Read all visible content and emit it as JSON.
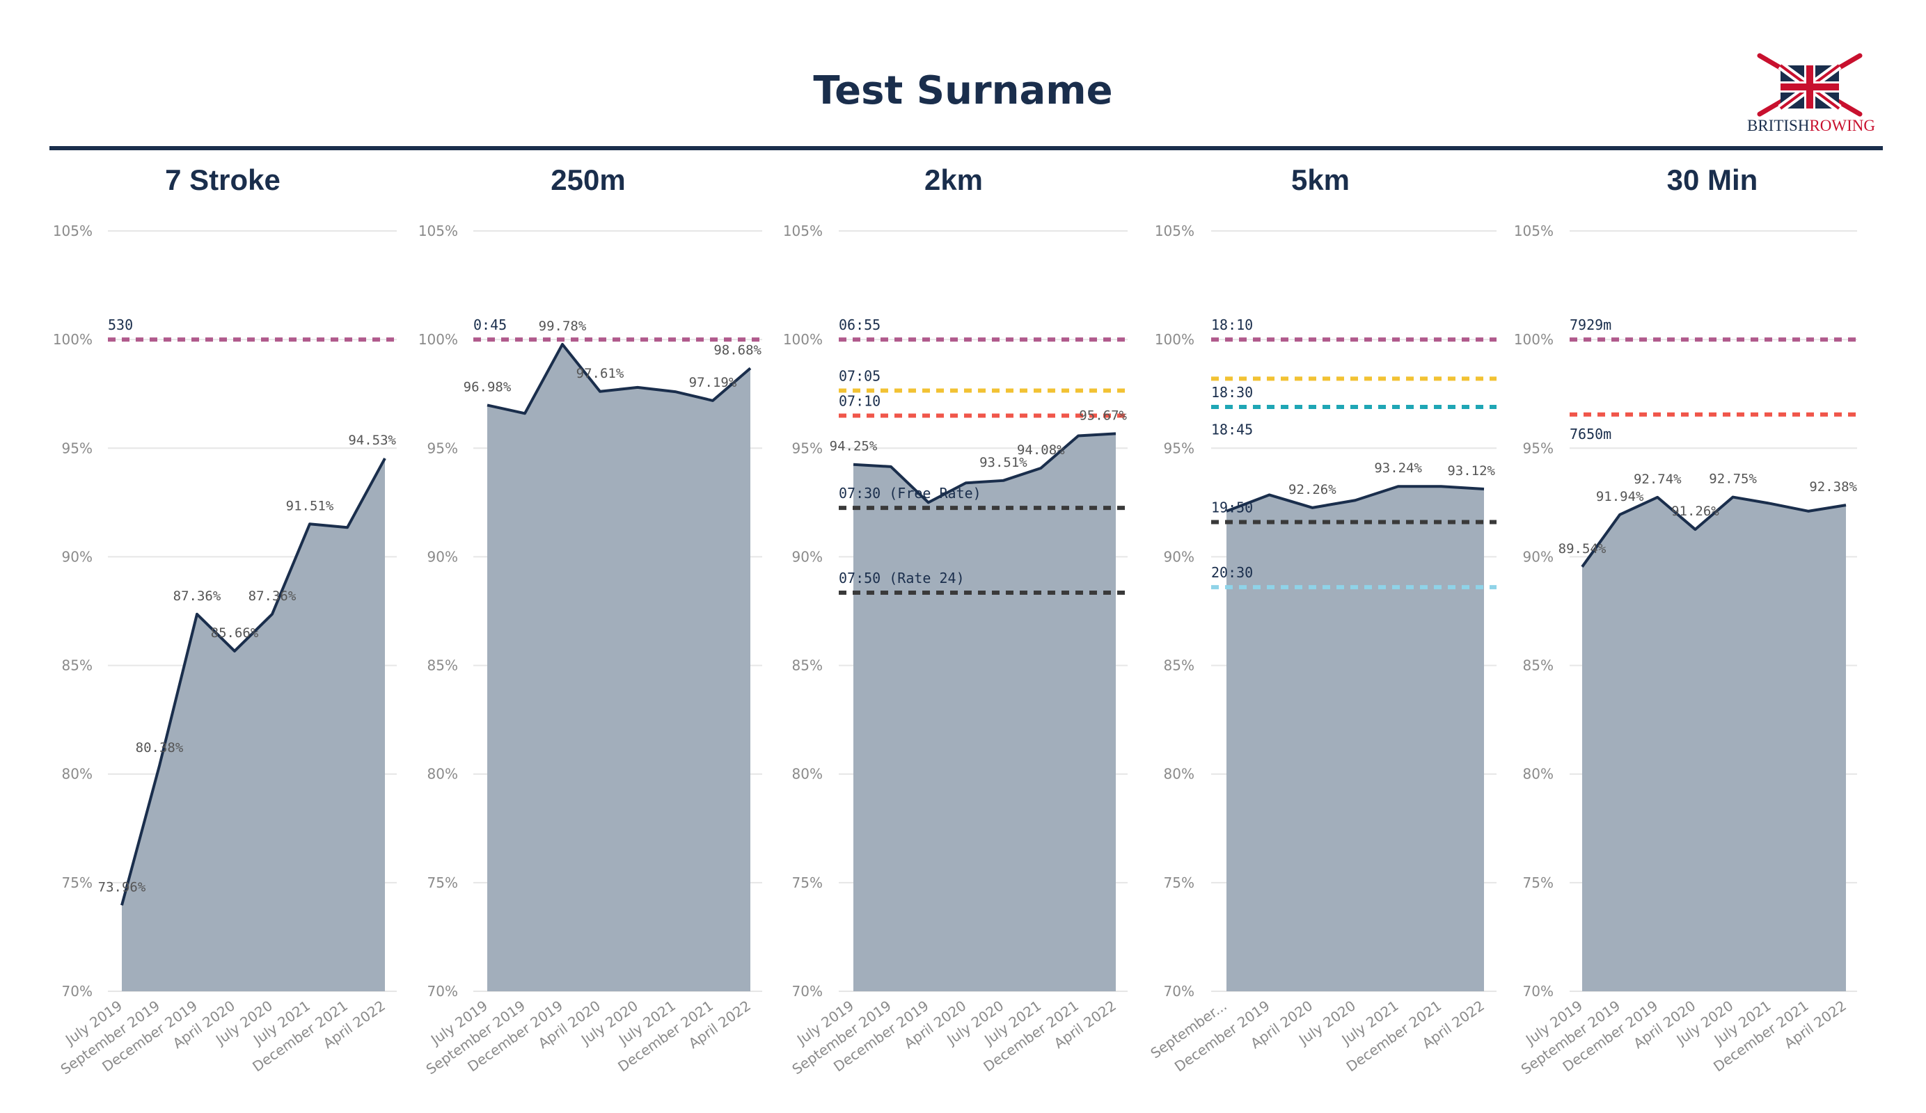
{
  "title": "Test Surname",
  "logo": {
    "word1": "BRITISH",
    "word2": "ROWING"
  },
  "colors": {
    "navy": "#1a2e4c",
    "area": "#a2aebb",
    "grid": "#e6e6e6",
    "ref_purple": "#b05a8c",
    "ref_yellow": "#f2c233",
    "ref_teal": "#1fa6b5",
    "ref_red": "#f0564a",
    "ref_dark": "#3a3a3a",
    "ref_lightblue": "#8fd3e8"
  },
  "chart_data": [
    {
      "type": "area",
      "title": "7 Stroke",
      "ylim": [
        70,
        105
      ],
      "yticks": [
        "70%",
        "75%",
        "80%",
        "85%",
        "90%",
        "95%",
        "100%",
        "105%"
      ],
      "categories": [
        "July 2019",
        "September 2019",
        "December 2019",
        "April 2020",
        "July 2020",
        "July 2021",
        "December 2021",
        "April 2022"
      ],
      "values": [
        73.96,
        80.38,
        87.36,
        85.66,
        87.36,
        91.51,
        91.35,
        94.53
      ],
      "data_labels": [
        {
          "i": 0,
          "text": "73.96%"
        },
        {
          "i": 1,
          "text": "80.38%"
        },
        {
          "i": 2,
          "text": "87.36%"
        },
        {
          "i": 3,
          "text": "85.66%"
        },
        {
          "i": 4,
          "text": "87.36%"
        },
        {
          "i": 5,
          "text": "91.51%"
        },
        {
          "i": 7,
          "text": "94.53%"
        }
      ],
      "ref_lines": [
        {
          "y": 100,
          "color": "ref_purple",
          "label": "530"
        }
      ]
    },
    {
      "type": "area",
      "title": "250m",
      "ylim": [
        70,
        105
      ],
      "yticks": [
        "70%",
        "75%",
        "80%",
        "85%",
        "90%",
        "95%",
        "100%",
        "105%"
      ],
      "categories": [
        "July 2019",
        "September 2019",
        "December 2019",
        "April 2020",
        "July 2020",
        "July 2021",
        "December 2021",
        "April 2022"
      ],
      "values": [
        96.98,
        96.6,
        99.78,
        97.61,
        97.8,
        97.6,
        97.19,
        98.68
      ],
      "data_labels": [
        {
          "i": 0,
          "text": "96.98%"
        },
        {
          "i": 2,
          "text": "99.78%"
        },
        {
          "i": 3,
          "text": "97.61%"
        },
        {
          "i": 6,
          "text": "97.19%"
        },
        {
          "i": 7,
          "text": "98.68%"
        }
      ],
      "ref_lines": [
        {
          "y": 100,
          "color": "ref_purple",
          "label": "0:45"
        }
      ]
    },
    {
      "type": "area",
      "title": "2km",
      "ylim": [
        70,
        105
      ],
      "yticks": [
        "70%",
        "75%",
        "80%",
        "85%",
        "90%",
        "95%",
        "100%",
        "105%"
      ],
      "categories": [
        "July 2019",
        "September 2019",
        "December 2019",
        "April 2020",
        "July 2020",
        "July 2021",
        "December 2021",
        "April 2022"
      ],
      "values": [
        94.25,
        94.15,
        92.5,
        93.4,
        93.51,
        94.08,
        95.57,
        95.67
      ],
      "data_labels": [
        {
          "i": 0,
          "text": "94.25%"
        },
        {
          "i": 4,
          "text": "93.51%"
        },
        {
          "i": 5,
          "text": "94.08%"
        },
        {
          "i": 7,
          "text": "95.67%"
        }
      ],
      "ref_lines": [
        {
          "y": 100,
          "color": "ref_purple",
          "label": "06:55"
        },
        {
          "y": 97.65,
          "color": "ref_yellow",
          "label": "07:05"
        },
        {
          "y": 96.5,
          "color": "ref_teal",
          "label": ""
        },
        {
          "y": 96.5,
          "color": "ref_red",
          "label": "07:10"
        },
        {
          "y": 92.25,
          "color": "ref_dark",
          "label": "07:30 (Free Rate)"
        },
        {
          "y": 88.35,
          "color": "ref_dark",
          "label": "07:50 (Rate 24)"
        }
      ]
    },
    {
      "type": "area",
      "title": "5km",
      "ylim": [
        70,
        105
      ],
      "yticks": [
        "70%",
        "75%",
        "80%",
        "85%",
        "90%",
        "95%",
        "100%",
        "105%"
      ],
      "categories": [
        "September...",
        "December 2019",
        "April 2020",
        "July 2020",
        "July 2021",
        "December 2021",
        "April 2022"
      ],
      "values": [
        92.1,
        92.85,
        92.26,
        92.6,
        93.24,
        93.24,
        93.12
      ],
      "data_labels": [
        {
          "i": 2,
          "text": "92.26%"
        },
        {
          "i": 4,
          "text": "93.24%"
        },
        {
          "i": 6,
          "text": "93.12%"
        }
      ],
      "ref_lines": [
        {
          "y": 100,
          "color": "ref_purple",
          "label": "18:10"
        },
        {
          "y": 98.2,
          "color": "ref_yellow",
          "label": ""
        },
        {
          "y": 96.9,
          "color": "ref_red",
          "label": "18:30"
        },
        {
          "y": 96.9,
          "color": "ref_teal",
          "label": ""
        },
        {
          "y": 91.6,
          "color": "ref_dark",
          "label": "19:50"
        },
        {
          "y": 88.6,
          "color": "ref_lightblue",
          "label": "20:30"
        }
      ],
      "extra_labels": [
        {
          "y": 96.4,
          "text": "18:45",
          "below_line": true
        }
      ]
    },
    {
      "type": "area",
      "title": "30 Min",
      "ylim": [
        70,
        105
      ],
      "yticks": [
        "70%",
        "75%",
        "80%",
        "85%",
        "90%",
        "95%",
        "100%",
        "105%"
      ],
      "categories": [
        "July 2019",
        "September 2019",
        "December 2019",
        "April 2020",
        "July 2020",
        "July 2021",
        "December 2021",
        "April 2022"
      ],
      "values": [
        89.54,
        91.94,
        92.74,
        91.26,
        92.75,
        92.45,
        92.1,
        92.38
      ],
      "data_labels": [
        {
          "i": 0,
          "text": "89.54%"
        },
        {
          "i": 1,
          "text": "91.94%"
        },
        {
          "i": 2,
          "text": "92.74%"
        },
        {
          "i": 3,
          "text": "91.26%"
        },
        {
          "i": 4,
          "text": "92.75%"
        },
        {
          "i": 7,
          "text": "92.38%"
        }
      ],
      "ref_lines": [
        {
          "y": 100,
          "color": "ref_purple",
          "label": "7929m"
        },
        {
          "y": 96.55,
          "color": "ref_red",
          "label": ""
        }
      ],
      "extra_labels": [
        {
          "y": 96.2,
          "text": "7650m",
          "below_line": true
        }
      ]
    }
  ]
}
